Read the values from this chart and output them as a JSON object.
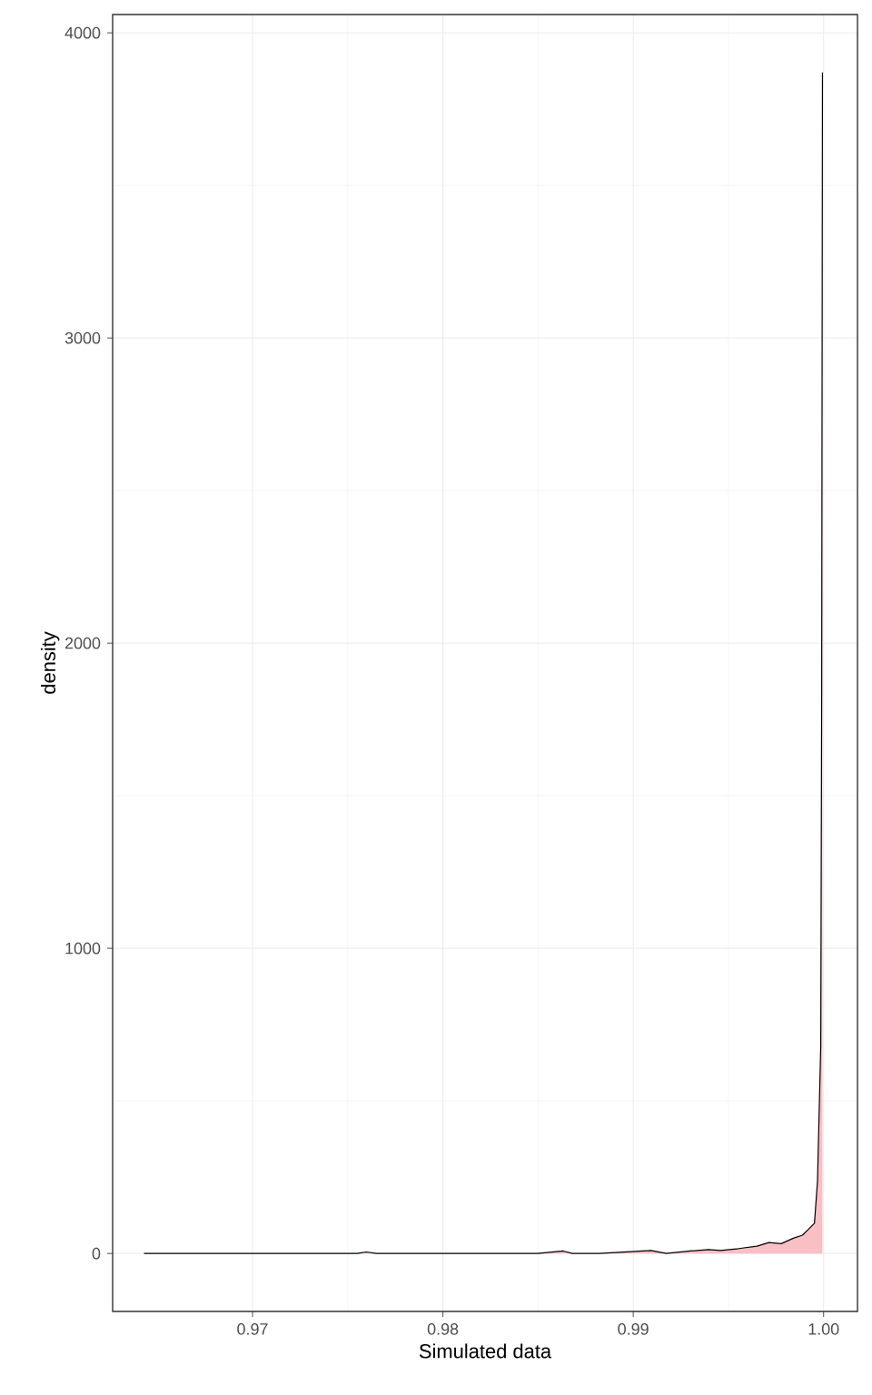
{
  "chart_data": {
    "type": "area",
    "xlabel": "Simulated data",
    "ylabel": "density",
    "xlim": [
      0.96265,
      1.00178
    ],
    "ylim": [
      -190,
      4060
    ],
    "xticks": [
      0.97,
      0.98,
      0.99,
      {
        "value": 1,
        "label": "1.00"
      }
    ],
    "yticks": [
      0,
      1000,
      2000,
      3000,
      4000
    ],
    "grid": true,
    "series": [
      {
        "color": "#f8c0c4",
        "x": [
          0.9643,
          0.97,
          0.9755,
          0.97598,
          0.9765,
          0.985,
          0.98632,
          0.9868,
          0.98822,
          0.99093,
          0.99173,
          0.993,
          0.99395,
          0.99459,
          0.99554,
          0.9965,
          0.99713,
          0.99777,
          0.99841,
          0.99889,
          0.9992,
          0.99952,
          0.99968,
          0.99985,
          0.9999,
          0.99994
        ],
        "values": [
          0,
          0,
          0,
          5,
          0,
          0,
          8,
          0,
          0,
          10,
          0,
          8,
          13,
          10,
          16,
          24,
          36,
          32,
          50,
          60,
          79,
          99,
          238,
          680,
          1850,
          3870
        ]
      }
    ]
  }
}
